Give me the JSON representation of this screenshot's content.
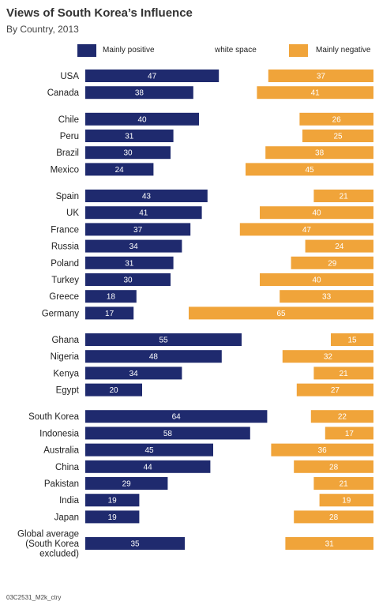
{
  "chart_data": {
    "type": "bar",
    "title": "Views of South Korea’s Influence",
    "subtitle": "By Country, 2013",
    "legend": {
      "positive": "Mainly positive",
      "middle": "white space",
      "negative": "Mainly negative",
      "placement": "top"
    },
    "colors": {
      "positive": "#1f2a6e",
      "negative": "#f0a43a"
    },
    "groups": [
      [
        {
          "label": "USA",
          "positive": 47,
          "negative": 37
        },
        {
          "label": "Canada",
          "positive": 38,
          "negative": 41
        }
      ],
      [
        {
          "label": "Chile",
          "positive": 40,
          "negative": 26
        },
        {
          "label": "Peru",
          "positive": 31,
          "negative": 25
        },
        {
          "label": "Brazil",
          "positive": 30,
          "negative": 38
        },
        {
          "label": "Mexico",
          "positive": 24,
          "negative": 45
        }
      ],
      [
        {
          "label": "Spain",
          "positive": 43,
          "negative": 21
        },
        {
          "label": "UK",
          "positive": 41,
          "negative": 40
        },
        {
          "label": "France",
          "positive": 37,
          "negative": 47
        },
        {
          "label": "Russia",
          "positive": 34,
          "negative": 24
        },
        {
          "label": "Poland",
          "positive": 31,
          "negative": 29
        },
        {
          "label": "Turkey",
          "positive": 30,
          "negative": 40
        },
        {
          "label": "Greece",
          "positive": 18,
          "negative": 33
        },
        {
          "label": "Germany",
          "positive": 17,
          "negative": 65
        }
      ],
      [
        {
          "label": "Ghana",
          "positive": 55,
          "negative": 15
        },
        {
          "label": "Nigeria",
          "positive": 48,
          "negative": 32
        },
        {
          "label": "Kenya",
          "positive": 34,
          "negative": 21
        },
        {
          "label": "Egypt",
          "positive": 20,
          "negative": 27
        }
      ],
      [
        {
          "label": "South Korea",
          "positive": 64,
          "negative": 22
        },
        {
          "label": "Indonesia",
          "positive": 58,
          "negative": 17
        },
        {
          "label": "Australia",
          "positive": 45,
          "negative": 36
        },
        {
          "label": "China",
          "positive": 44,
          "negative": 28
        },
        {
          "label": "Pakistan",
          "positive": 29,
          "negative": 21
        },
        {
          "label": "India",
          "positive": 19,
          "negative": 19
        },
        {
          "label": "Japan",
          "positive": 19,
          "negative": 28
        }
      ],
      [
        {
          "label": "Global average (South Korea excluded)",
          "label_lines": [
            "Global average",
            "(South Korea",
            "excluded)"
          ],
          "positive": 35,
          "negative": 31
        }
      ]
    ],
    "source": "03C2531_M2k_ctry"
  }
}
